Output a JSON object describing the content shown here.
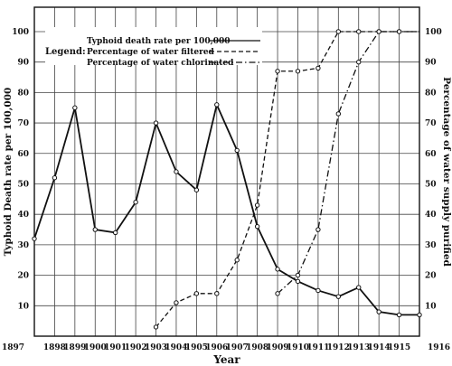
{
  "chart_data": {
    "type": "line",
    "x": [
      1897,
      1898,
      1899,
      1900,
      1901,
      1902,
      1903,
      1904,
      1905,
      1906,
      1907,
      1908,
      1909,
      1910,
      1911,
      1912,
      1913,
      1914,
      1915,
      1916
    ],
    "xlabel": "Year",
    "ylabel_left": "Typhoid Death rate per 100,000",
    "ylabel_right": "Percentage of water supply purified",
    "ylim": [
      0,
      108
    ],
    "yticks": [
      10,
      20,
      30,
      40,
      50,
      60,
      70,
      80,
      90,
      100
    ],
    "grid": true,
    "legend_title": "Legend:",
    "legend_position": "top-left",
    "series": [
      {
        "name": "Typhoid death rate per 100,000",
        "style": "solid",
        "x": [
          1897,
          1898,
          1899,
          1900,
          1901,
          1902,
          1903,
          1904,
          1905,
          1906,
          1907,
          1908,
          1909,
          1910,
          1911,
          1912,
          1913,
          1914,
          1915,
          1916
        ],
        "values": [
          32,
          52,
          75,
          35,
          34,
          44,
          70,
          54,
          48,
          76,
          61,
          36,
          22,
          18,
          15,
          13,
          16,
          8,
          7,
          7
        ]
      },
      {
        "name": "Percentage of water filtered",
        "style": "dashed",
        "x": [
          1903,
          1904,
          1905,
          1906,
          1907,
          1908,
          1909,
          1910,
          1911,
          1912,
          1913,
          1914,
          1915,
          1916
        ],
        "values": [
          3,
          11,
          14,
          14,
          25,
          43,
          87,
          87,
          88,
          100,
          100,
          100,
          100,
          100
        ]
      },
      {
        "name": "Percentage of water chlorinated",
        "style": "dash-dot",
        "x": [
          1909,
          1910,
          1911,
          1912,
          1913,
          1914,
          1915,
          1916
        ],
        "values": [
          14,
          20,
          35,
          73,
          90,
          100,
          100,
          100
        ]
      }
    ]
  }
}
